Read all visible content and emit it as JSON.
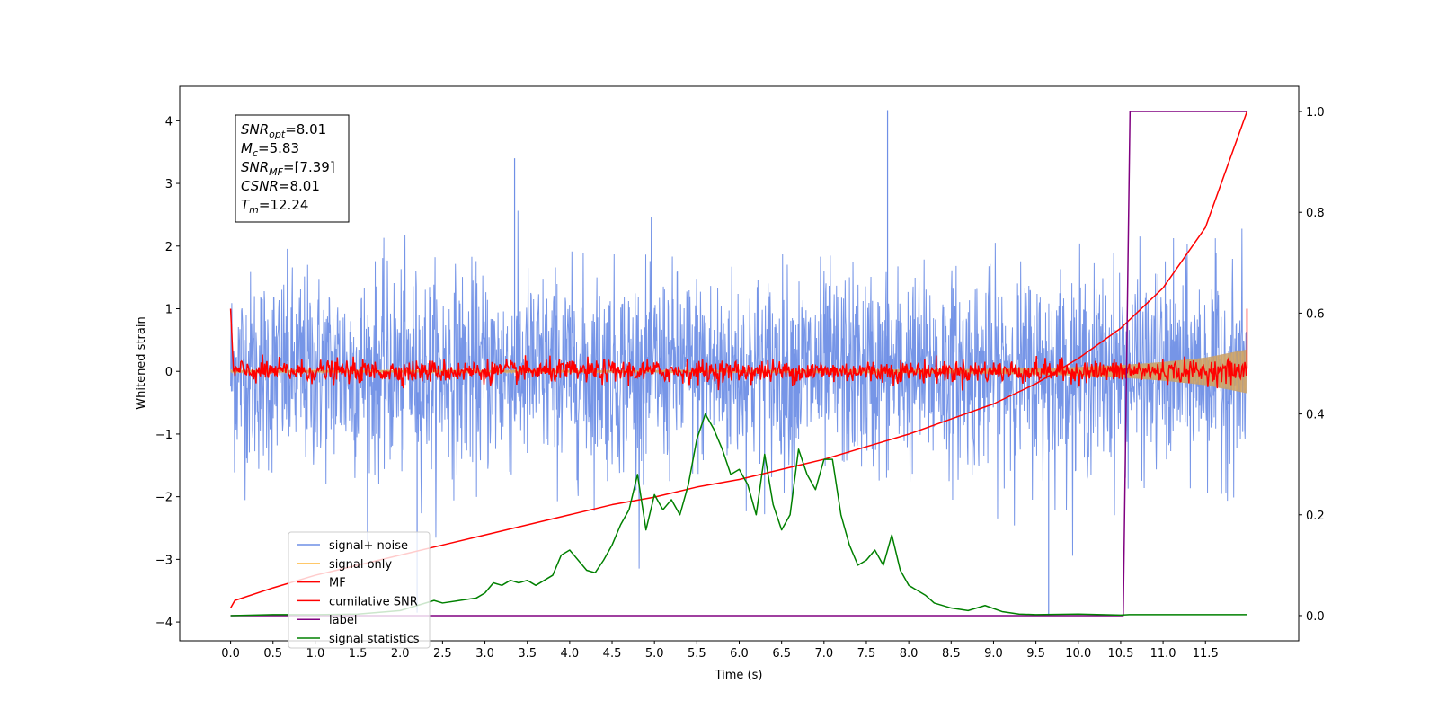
{
  "chart_data": {
    "type": "line",
    "xlabel": "Time (s)",
    "ylabel": "Whitened strain",
    "xlim": [
      -0.6,
      12.6
    ],
    "ylim": [
      -4.3,
      4.55
    ],
    "ylim_right": [
      -0.05,
      1.05
    ],
    "x_ticks": [
      0.0,
      0.5,
      1.0,
      1.5,
      2.0,
      2.5,
      3.0,
      3.5,
      4.0,
      4.5,
      5.0,
      5.5,
      6.0,
      6.5,
      7.0,
      7.5,
      8.0,
      8.5,
      9.0,
      9.5,
      10.0,
      10.5,
      11.0,
      11.5
    ],
    "x_tick_labels": [
      "0.0",
      "0.5",
      "1.0",
      "1.5",
      "2.0",
      "2.5",
      "3.0",
      "3.5",
      "4.0",
      "4.5",
      "5.0",
      "5.5",
      "6.0",
      "6.5",
      "7.0",
      "7.5",
      "8.0",
      "8.5",
      "9.0",
      "9.5",
      "10.0",
      "10.5",
      "11.0",
      "11.5"
    ],
    "y_ticks": [
      -4,
      -3,
      -2,
      -1,
      0,
      1,
      2,
      3,
      4
    ],
    "y_tick_labels": [
      "−4",
      "−3",
      "−2",
      "−1",
      "0",
      "1",
      "2",
      "3",
      "4"
    ],
    "y_right_ticks": [
      0.0,
      0.2,
      0.4,
      0.6,
      0.8,
      1.0
    ],
    "y_right_tick_labels": [
      "0.0",
      "0.2",
      "0.4",
      "0.6",
      "0.8",
      "1.0"
    ],
    "grid": false,
    "legend_position": "lower-left",
    "series": [
      {
        "name": "signal+ noise",
        "color": "#6f8fe6",
        "axis": "left",
        "kind": "noise",
        "x_range": [
          0.0,
          11.99
        ],
        "typical_range": [
          -1.8,
          1.8
        ],
        "approx_max": 4.17,
        "approx_min": -3.85
      },
      {
        "name": "signal only",
        "color": "#ffc869",
        "axis": "left",
        "kind": "envelope",
        "x": [
          0.0,
          6.0,
          8.0,
          9.0,
          9.5,
          10.0,
          10.5,
          11.0,
          11.5,
          11.99
        ],
        "amplitude": [
          0.02,
          0.02,
          0.03,
          0.04,
          0.05,
          0.07,
          0.1,
          0.15,
          0.22,
          0.35
        ]
      },
      {
        "name": "MF",
        "color": "#ff0000",
        "axis": "left",
        "kind": "noise",
        "x_range": [
          0.0,
          11.99
        ],
        "typical_range": [
          -0.2,
          0.2
        ],
        "start_value": 1.0,
        "end_value": 1.0
      },
      {
        "name": "cumilative SNR",
        "color": "#ff0000",
        "axis": "right",
        "x": [
          0.0,
          0.05,
          0.5,
          1.0,
          1.5,
          2.0,
          2.5,
          3.0,
          3.5,
          4.0,
          4.5,
          5.0,
          5.5,
          6.0,
          6.5,
          7.0,
          7.5,
          8.0,
          8.5,
          9.0,
          9.5,
          10.0,
          10.5,
          11.0,
          11.5,
          11.99
        ],
        "y": [
          0.015,
          0.03,
          0.055,
          0.08,
          0.1,
          0.12,
          0.14,
          0.16,
          0.18,
          0.2,
          0.22,
          0.235,
          0.255,
          0.27,
          0.29,
          0.31,
          0.335,
          0.36,
          0.39,
          0.42,
          0.46,
          0.51,
          0.57,
          0.65,
          0.77,
          1.0
        ]
      },
      {
        "name": "label",
        "color": "#800080",
        "axis": "right",
        "x": [
          0.0,
          10.53,
          10.61,
          11.99
        ],
        "y": [
          0.0,
          0.0,
          1.0,
          1.0
        ]
      },
      {
        "name": "signal statistics",
        "color": "#008000",
        "axis": "right",
        "x": [
          0.0,
          0.5,
          1.0,
          1.5,
          2.0,
          2.2,
          2.4,
          2.5,
          2.7,
          2.9,
          3.0,
          3.1,
          3.2,
          3.3,
          3.4,
          3.5,
          3.6,
          3.8,
          3.9,
          4.0,
          4.2,
          4.3,
          4.4,
          4.5,
          4.6,
          4.7,
          4.8,
          4.9,
          5.0,
          5.1,
          5.2,
          5.3,
          5.4,
          5.5,
          5.6,
          5.7,
          5.8,
          5.9,
          6.0,
          6.1,
          6.2,
          6.3,
          6.4,
          6.5,
          6.6,
          6.7,
          6.8,
          6.9,
          7.0,
          7.1,
          7.2,
          7.3,
          7.4,
          7.5,
          7.6,
          7.7,
          7.8,
          7.9,
          8.0,
          8.1,
          8.2,
          8.3,
          8.5,
          8.7,
          8.9,
          9.1,
          9.3,
          9.5,
          10.0,
          10.5,
          10.6,
          11.0,
          11.5,
          11.99
        ],
        "y": [
          0.0,
          0.002,
          0.002,
          0.003,
          0.01,
          0.02,
          0.03,
          0.025,
          0.03,
          0.035,
          0.045,
          0.065,
          0.06,
          0.07,
          0.065,
          0.07,
          0.06,
          0.08,
          0.12,
          0.13,
          0.09,
          0.085,
          0.11,
          0.14,
          0.18,
          0.21,
          0.28,
          0.17,
          0.24,
          0.21,
          0.23,
          0.2,
          0.26,
          0.35,
          0.4,
          0.37,
          0.33,
          0.28,
          0.29,
          0.26,
          0.2,
          0.32,
          0.22,
          0.17,
          0.2,
          0.33,
          0.28,
          0.25,
          0.31,
          0.31,
          0.2,
          0.14,
          0.1,
          0.11,
          0.13,
          0.1,
          0.16,
          0.09,
          0.06,
          0.05,
          0.04,
          0.025,
          0.015,
          0.01,
          0.02,
          0.008,
          0.003,
          0.002,
          0.003,
          0.001,
          0.002,
          0.002,
          0.002,
          0.002
        ]
      }
    ]
  },
  "annotation": {
    "lines": [
      {
        "var": "SNR",
        "sub": "opt",
        "value": "=8.01"
      },
      {
        "var": "M",
        "sub": "c",
        "value": "=5.83"
      },
      {
        "var": "SNR",
        "sub": "MF",
        "value": "=[7.39]"
      },
      {
        "var": "CSNR",
        "sub": "",
        "value": "=8.01"
      },
      {
        "var": "T",
        "sub": "m",
        "value": "=12.24"
      }
    ]
  }
}
